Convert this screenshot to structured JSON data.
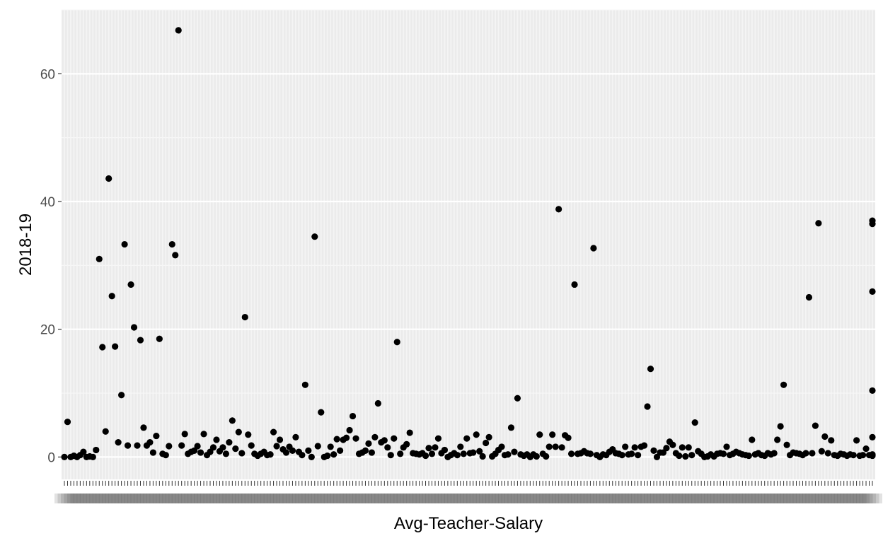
{
  "chart_data": {
    "type": "scatter",
    "title": "",
    "xlabel": "Avg-Teacher-Salary",
    "ylabel": "2018-19",
    "x_axis": "categorical",
    "ylim": [
      -3.5,
      70.0
    ],
    "y_ticks": [
      0,
      20,
      40,
      60
    ],
    "grid": true,
    "legend": "none",
    "colors": {
      "panel": "#ebebeb",
      "grid_major": "#ffffff",
      "grid_minor": "#f4f4f4",
      "point": "#000000",
      "tick_text": "#4d4d4d"
    },
    "points": [
      [
        0,
        0
      ],
      [
        1,
        5.5
      ],
      [
        2,
        0
      ],
      [
        3,
        0.2
      ],
      [
        4,
        0
      ],
      [
        5,
        0.3
      ],
      [
        6,
        0.8
      ],
      [
        7,
        0
      ],
      [
        8,
        0.1
      ],
      [
        9,
        0
      ],
      [
        10,
        1.1
      ],
      [
        11,
        31
      ],
      [
        12,
        17.2
      ],
      [
        13,
        4
      ],
      [
        14,
        43.6
      ],
      [
        15,
        25.2
      ],
      [
        16,
        17.3
      ],
      [
        17,
        2.3
      ],
      [
        18,
        9.7
      ],
      [
        19,
        33.3
      ],
      [
        20,
        1.8
      ],
      [
        21,
        27
      ],
      [
        22,
        20.3
      ],
      [
        23,
        1.8
      ],
      [
        24,
        18.3
      ],
      [
        25,
        4.6
      ],
      [
        26,
        1.8
      ],
      [
        27,
        2.3
      ],
      [
        28,
        0.7
      ],
      [
        29,
        3.3
      ],
      [
        30,
        18.5
      ],
      [
        31,
        0.5
      ],
      [
        32,
        0.3
      ],
      [
        33,
        1.7
      ],
      [
        34,
        33.3
      ],
      [
        35,
        31.6
      ],
      [
        36,
        66.8
      ],
      [
        37,
        1.8
      ],
      [
        38,
        3.6
      ],
      [
        39,
        0.5
      ],
      [
        40,
        0.8
      ],
      [
        41,
        1
      ],
      [
        42,
        1.7
      ],
      [
        43,
        0.7
      ],
      [
        44,
        3.6
      ],
      [
        45,
        0.3
      ],
      [
        46,
        0.8
      ],
      [
        47,
        1.5
      ],
      [
        48,
        2.7
      ],
      [
        49,
        0.9
      ],
      [
        50,
        1.5
      ],
      [
        51,
        0.5
      ],
      [
        52,
        2.3
      ],
      [
        53,
        5.7
      ],
      [
        54,
        1.3
      ],
      [
        55,
        3.9
      ],
      [
        56,
        0.6
      ],
      [
        57,
        21.9
      ],
      [
        58,
        3.5
      ],
      [
        59,
        1.8
      ],
      [
        60,
        0.5
      ],
      [
        61,
        0.2
      ],
      [
        62,
        0.5
      ],
      [
        63,
        0.8
      ],
      [
        64,
        0.3
      ],
      [
        65,
        0.4
      ],
      [
        66,
        3.9
      ],
      [
        67,
        1.7
      ],
      [
        68,
        2.7
      ],
      [
        69,
        1.2
      ],
      [
        70,
        0.7
      ],
      [
        71,
        1.6
      ],
      [
        72,
        1
      ],
      [
        73,
        3.1
      ],
      [
        74,
        0.8
      ],
      [
        75,
        0.3
      ],
      [
        76,
        11.3
      ],
      [
        77,
        1
      ],
      [
        78,
        0
      ],
      [
        79,
        34.5
      ],
      [
        80,
        1.7
      ],
      [
        81,
        7
      ],
      [
        82,
        0
      ],
      [
        83,
        0.2
      ],
      [
        84,
        1.6
      ],
      [
        85,
        0.4
      ],
      [
        86,
        2.8
      ],
      [
        87,
        1
      ],
      [
        88,
        2.7
      ],
      [
        89,
        3
      ],
      [
        90,
        4.2
      ],
      [
        91,
        6.4
      ],
      [
        92,
        2.9
      ],
      [
        93,
        0.5
      ],
      [
        94,
        0.7
      ],
      [
        95,
        1
      ],
      [
        96,
        2.1
      ],
      [
        97,
        0.7
      ],
      [
        98,
        3.1
      ],
      [
        99,
        8.4
      ],
      [
        100,
        2.3
      ],
      [
        101,
        2.6
      ],
      [
        102,
        1.5
      ],
      [
        103,
        0.3
      ],
      [
        104,
        2.9
      ],
      [
        105,
        18
      ],
      [
        106,
        0.5
      ],
      [
        107,
        1.5
      ],
      [
        108,
        2
      ],
      [
        109,
        3.8
      ],
      [
        110,
        0.6
      ],
      [
        111,
        0.5
      ],
      [
        112,
        0.4
      ],
      [
        113,
        0.6
      ],
      [
        114,
        0.2
      ],
      [
        115,
        1.4
      ],
      [
        116,
        0.5
      ],
      [
        117,
        1.5
      ],
      [
        118,
        2.9
      ],
      [
        119,
        0.6
      ],
      [
        120,
        1.1
      ],
      [
        121,
        0
      ],
      [
        122,
        0.3
      ],
      [
        123,
        0.6
      ],
      [
        124,
        0.3
      ],
      [
        125,
        1.6
      ],
      [
        126,
        0.5
      ],
      [
        127,
        2.9
      ],
      [
        128,
        0.6
      ],
      [
        129,
        0.7
      ],
      [
        130,
        3.5
      ],
      [
        131,
        0.9
      ],
      [
        132,
        0.1
      ],
      [
        133,
        2.2
      ],
      [
        134,
        3.1
      ],
      [
        135,
        0.1
      ],
      [
        136,
        0.5
      ],
      [
        137,
        1.1
      ],
      [
        138,
        1.6
      ],
      [
        139,
        0.3
      ],
      [
        140,
        0.4
      ],
      [
        141,
        4.6
      ],
      [
        142,
        0.8
      ],
      [
        143,
        9.2
      ],
      [
        144,
        0.4
      ],
      [
        145,
        0.2
      ],
      [
        146,
        0.4
      ],
      [
        147,
        0
      ],
      [
        148,
        0.4
      ],
      [
        149,
        0.1
      ],
      [
        150,
        3.5
      ],
      [
        151,
        0.5
      ],
      [
        152,
        0.1
      ],
      [
        153,
        1.6
      ],
      [
        154,
        3.5
      ],
      [
        155,
        1.6
      ],
      [
        156,
        38.8
      ],
      [
        157,
        1.5
      ],
      [
        158,
        3.4
      ],
      [
        159,
        3
      ],
      [
        160,
        0.5
      ],
      [
        161,
        27
      ],
      [
        162,
        0.5
      ],
      [
        163,
        0.6
      ],
      [
        164,
        0.9
      ],
      [
        165,
        0.6
      ],
      [
        166,
        0.5
      ],
      [
        167,
        32.7
      ],
      [
        168,
        0.3
      ],
      [
        169,
        0
      ],
      [
        170,
        0.4
      ],
      [
        171,
        0.3
      ],
      [
        172,
        0.8
      ],
      [
        173,
        1.2
      ],
      [
        174,
        0.6
      ],
      [
        175,
        0.5
      ],
      [
        176,
        0.3
      ],
      [
        177,
        1.6
      ],
      [
        178,
        0.4
      ],
      [
        179,
        0.5
      ],
      [
        180,
        1.5
      ],
      [
        181,
        0.3
      ],
      [
        182,
        1.6
      ],
      [
        183,
        1.8
      ],
      [
        184,
        7.9
      ],
      [
        185,
        13.8
      ],
      [
        186,
        1
      ],
      [
        187,
        0
      ],
      [
        188,
        0.7
      ],
      [
        189,
        0.7
      ],
      [
        190,
        1.4
      ],
      [
        191,
        2.4
      ],
      [
        192,
        1.9
      ],
      [
        193,
        0.6
      ],
      [
        194,
        0.2
      ],
      [
        195,
        1.5
      ],
      [
        196,
        0.1
      ],
      [
        197,
        1.5
      ],
      [
        198,
        0.3
      ],
      [
        199,
        5.4
      ],
      [
        200,
        0.9
      ],
      [
        201,
        0.5
      ],
      [
        202,
        0
      ],
      [
        203,
        0.1
      ],
      [
        204,
        0.4
      ],
      [
        205,
        0.1
      ],
      [
        206,
        0.5
      ],
      [
        207,
        0.6
      ],
      [
        208,
        0.5
      ],
      [
        209,
        1.6
      ],
      [
        210,
        0.3
      ],
      [
        211,
        0.5
      ],
      [
        212,
        0.8
      ],
      [
        213,
        0.6
      ],
      [
        214,
        0.4
      ],
      [
        215,
        0.3
      ],
      [
        216,
        0.2
      ],
      [
        217,
        2.7
      ],
      [
        218,
        0.4
      ],
      [
        219,
        0.6
      ],
      [
        220,
        0.3
      ],
      [
        221,
        0.2
      ],
      [
        222,
        0.6
      ],
      [
        223,
        0.4
      ],
      [
        224,
        0.6
      ],
      [
        225,
        2.7
      ],
      [
        226,
        4.8
      ],
      [
        227,
        11.3
      ],
      [
        228,
        1.9
      ],
      [
        229,
        0.3
      ],
      [
        230,
        0.7
      ],
      [
        231,
        0.6
      ],
      [
        232,
        0.5
      ],
      [
        233,
        0.3
      ],
      [
        234,
        0.6
      ],
      [
        235,
        25
      ],
      [
        236,
        0.6
      ],
      [
        237,
        4.9
      ],
      [
        238,
        36.6
      ],
      [
        239,
        0.9
      ],
      [
        240,
        3.2
      ],
      [
        241,
        0.6
      ],
      [
        242,
        2.6
      ],
      [
        243,
        0.3
      ],
      [
        244,
        0.2
      ],
      [
        245,
        0.5
      ],
      [
        246,
        0.4
      ],
      [
        247,
        0.2
      ],
      [
        248,
        0.4
      ],
      [
        249,
        0.3
      ],
      [
        250,
        2.6
      ],
      [
        251,
        0.2
      ],
      [
        252,
        0.3
      ],
      [
        253,
        1.3
      ],
      [
        254,
        0.3
      ],
      [
        255,
        37
      ],
      [
        255,
        36.5
      ],
      [
        255,
        25.9
      ],
      [
        255,
        10.4
      ],
      [
        255,
        3.1
      ],
      [
        255,
        0.4
      ],
      [
        255,
        0.2
      ]
    ]
  }
}
